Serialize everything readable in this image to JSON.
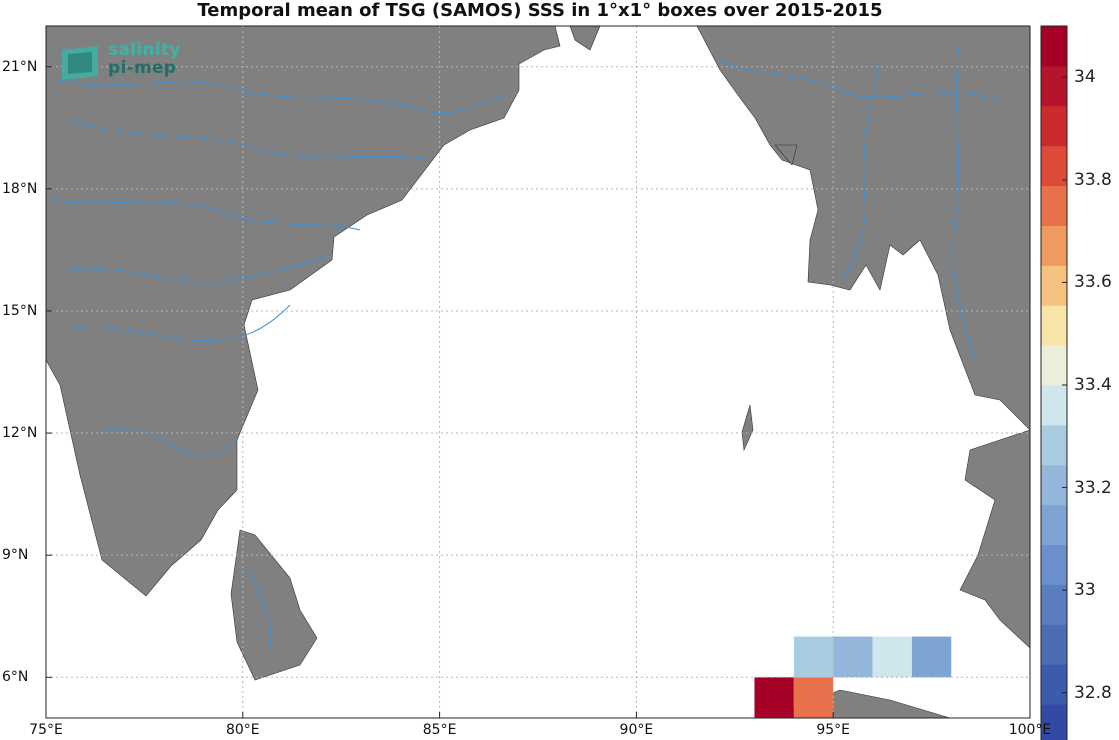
{
  "title": "Temporal mean of TSG (SAMOS) SSS in 1°x1° boxes over 2015-2015",
  "logo": {
    "line1": "salinity",
    "line2": "pi-mep"
  },
  "map": {
    "lon_range": [
      75,
      100
    ],
    "lat_range": [
      5,
      22
    ],
    "land_color": "#808080",
    "ocean_color": "#ffffff",
    "river_color": "#3a8fd6",
    "grid_lons": [
      75,
      80,
      85,
      90,
      95,
      100
    ],
    "grid_lats": [
      6,
      9,
      12,
      15,
      18,
      21
    ],
    "lon_labels": [
      "75°E",
      "80°E",
      "85°E",
      "90°E",
      "95°E",
      "100°E"
    ],
    "lat_labels": [
      "6°N",
      "9°N",
      "12°N",
      "15°N",
      "18°N",
      "21°N"
    ]
  },
  "chart_data": {
    "type": "heatmap",
    "title": "Temporal mean of TSG (SAMOS) SSS in 1°x1° boxes over 2015-2015",
    "cells": [
      {
        "lon": [
          93,
          94
        ],
        "lat": [
          5,
          6
        ],
        "value": 34.1
      },
      {
        "lon": [
          94,
          95
        ],
        "lat": [
          5,
          6
        ],
        "value": 33.75
      },
      {
        "lon": [
          94,
          95
        ],
        "lat": [
          6,
          7
        ],
        "value": 33.25
      },
      {
        "lon": [
          95,
          96
        ],
        "lat": [
          6,
          7
        ],
        "value": 33.2
      },
      {
        "lon": [
          96,
          97
        ],
        "lat": [
          6,
          7
        ],
        "value": 33.35
      },
      {
        "lon": [
          97,
          98
        ],
        "lat": [
          6,
          7
        ],
        "value": 33.1
      }
    ],
    "colorbar": {
      "range": [
        32.7,
        34.1
      ],
      "colors": [
        "#3349a6",
        "#3a5cab",
        "#4a6db4",
        "#5a7ec0",
        "#6a8fca",
        "#7ea4d3",
        "#93b6da",
        "#a8cde1",
        "#cfe7ec",
        "#ebeedb",
        "#f6e4a8",
        "#f5c27f",
        "#ef9b60",
        "#e6714b",
        "#dd4a38",
        "#cc2a2d",
        "#b5152b",
        "#a50026"
      ],
      "tick_values": [
        32.8,
        33,
        33.2,
        33.4,
        33.6,
        33.8,
        34
      ],
      "tick_labels": [
        "32.8",
        "33",
        "33.2",
        "33.4",
        "33.6",
        "33.8",
        "34"
      ]
    }
  }
}
